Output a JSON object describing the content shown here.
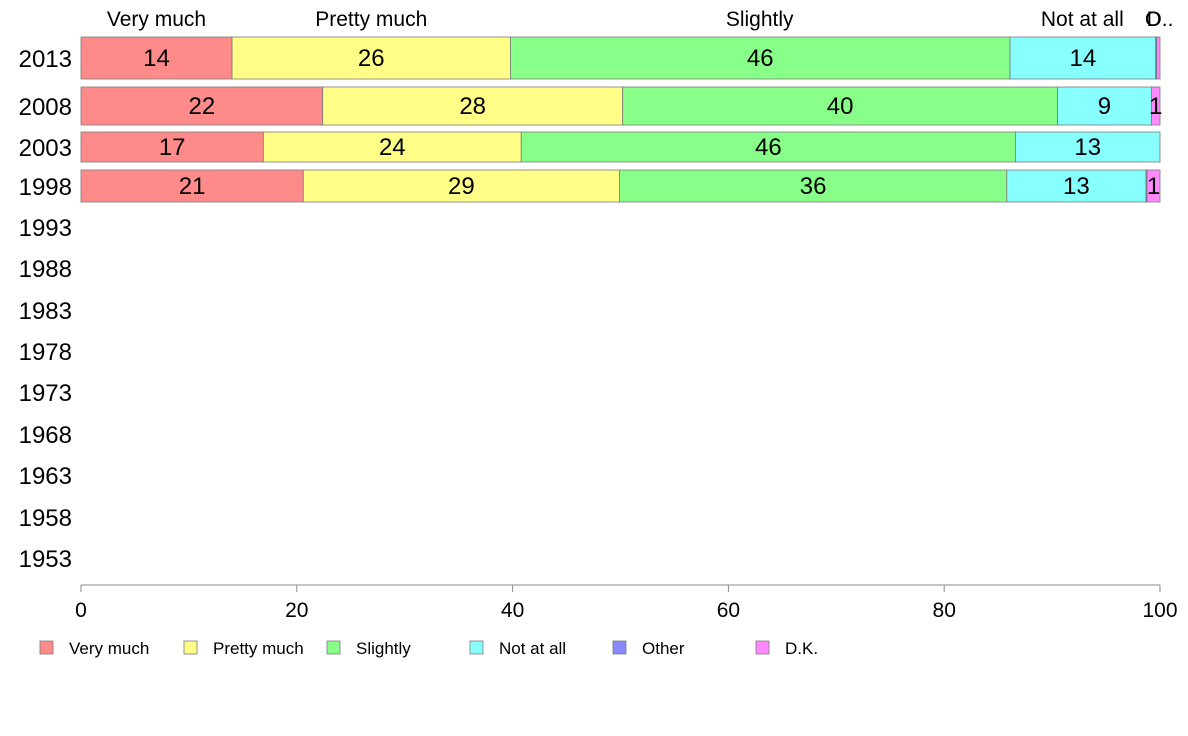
{
  "chart_data": {
    "type": "bar",
    "orientation": "horizontal",
    "stacked": true,
    "categories": [
      "2013",
      "2008",
      "2003",
      "1998",
      "1993",
      "1988",
      "1983",
      "1978",
      "1973",
      "1968",
      "1963",
      "1958",
      "1953"
    ],
    "series": [
      {
        "name": "Very much",
        "color": "#ff8a8a",
        "values": [
          14,
          22.4,
          16.9,
          20.6,
          null,
          null,
          null,
          null,
          null,
          null,
          null,
          null,
          null
        ],
        "labels": [
          "14",
          "22",
          "17",
          "21",
          "",
          "",
          "",
          "",
          "",
          "",
          "",
          "",
          ""
        ]
      },
      {
        "name": "Pretty much",
        "color": "#ffff88",
        "values": [
          25.8,
          27.8,
          23.9,
          29.3,
          null,
          null,
          null,
          null,
          null,
          null,
          null,
          null,
          null
        ],
        "labels": [
          "26",
          "28",
          "24",
          "29",
          "",
          "",
          "",
          "",
          "",
          "",
          "",
          "",
          ""
        ]
      },
      {
        "name": "Slightly",
        "color": "#88ff88",
        "values": [
          46.3,
          40.3,
          45.8,
          35.9,
          null,
          null,
          null,
          null,
          null,
          null,
          null,
          null,
          null
        ],
        "labels": [
          "46",
          "40",
          "46",
          "36",
          "",
          "",
          "",
          "",
          "",
          "",
          "",
          "",
          ""
        ]
      },
      {
        "name": "Not at all",
        "color": "#88ffff",
        "values": [
          13.5,
          8.7,
          13.4,
          12.9,
          null,
          null,
          null,
          null,
          null,
          null,
          null,
          null,
          null
        ],
        "labels": [
          "14",
          "9",
          "13",
          "13",
          "",
          "",
          "",
          "",
          "",
          "",
          "",
          "",
          ""
        ]
      },
      {
        "name": "Other",
        "color": "#8888ff",
        "values": [
          0.1,
          0,
          0,
          0.1,
          null,
          null,
          null,
          null,
          null,
          null,
          null,
          null,
          null
        ],
        "labels": [
          "",
          "",
          "",
          "",
          "",
          "",
          "",
          "",
          "",
          "",
          "",
          "",
          ""
        ]
      },
      {
        "name": "D.K.",
        "color": "#ff88ff",
        "values": [
          0.3,
          0.8,
          0,
          1.2,
          null,
          null,
          null,
          null,
          null,
          null,
          null,
          null,
          null
        ],
        "labels": [
          "",
          "1",
          "",
          "1",
          "",
          "",
          "",
          "",
          "",
          "",
          "",
          "",
          ""
        ]
      }
    ],
    "top_labels": [
      {
        "text": "Very much",
        "x": 7
      },
      {
        "text": "Pretty much",
        "x": 26.9
      },
      {
        "text": "Slightly",
        "x": 62.9
      },
      {
        "text": "Not at all",
        "x": 92.8
      },
      {
        "text": "O",
        "x": 99.35
      },
      {
        "text": "D..",
        "x": 100.0
      }
    ],
    "x_ticks": [
      0,
      20,
      40,
      60,
      80,
      100
    ],
    "xlim": [
      0,
      100
    ],
    "xlabel": "",
    "ylabel": "",
    "title": "",
    "grid": false,
    "legend_position": "bottom-left"
  }
}
